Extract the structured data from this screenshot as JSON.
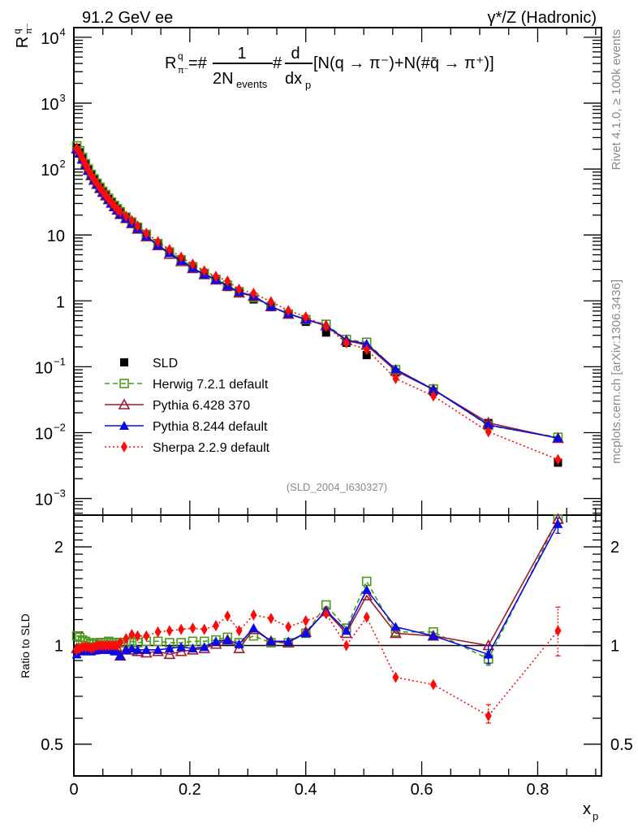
{
  "header": {
    "left_title": "91.2 GeV ee",
    "right_title": "γ*/Z (Hadronic)"
  },
  "side_labels": {
    "rivet": "Rivet 4.1.0, ≥ 100k events",
    "mcplots": "mcplots.cern.ch [arXiv:1306.3436]"
  },
  "formula": {
    "lhs": "R",
    "lhs_sup": "q",
    "lhs_sub": "π⁻",
    "eq": "=#",
    "num": "1",
    "den": "2N",
    "den_sub": "events",
    "hash2": "#",
    "d_num": "d",
    "d_den": "dx",
    "d_den_sub": "p",
    "bracket": "[N(q → π⁻)+N(#q̄ → π⁺)]"
  },
  "analysis_id": "(SLD_2004_I630327)",
  "colors": {
    "SLD": "#000000",
    "Herwig": "#4a9a1c",
    "Pythia6": "#a0182c",
    "Pythia8": "#0a0ae6",
    "Sherpa": "#ff0a0a"
  },
  "chart_data": [
    {
      "type": "scatter",
      "panel": "main",
      "title": "",
      "ylabel": "R^q_π-",
      "xlabel": "",
      "yscale": "log",
      "ylim": [
        0.00056,
        14000
      ],
      "xlim": [
        0,
        0.91
      ],
      "yticks": [
        {
          "value": 10000,
          "label": "10^4"
        },
        {
          "value": 1000,
          "label": "10^3"
        },
        {
          "value": 100,
          "label": "10^2"
        },
        {
          "value": 10,
          "label": "10"
        },
        {
          "value": 1,
          "label": "1"
        },
        {
          "value": 0.1,
          "label": "10^-1"
        },
        {
          "value": 0.01,
          "label": "10^-2"
        },
        {
          "value": 0.001,
          "label": "10^-3"
        }
      ],
      "legend_position": "bottom-left",
      "x": [
        0.005,
        0.01,
        0.015,
        0.02,
        0.025,
        0.03,
        0.035,
        0.04,
        0.045,
        0.05,
        0.055,
        0.06,
        0.065,
        0.07,
        0.075,
        0.08,
        0.09,
        0.1,
        0.11,
        0.125,
        0.145,
        0.165,
        0.185,
        0.205,
        0.225,
        0.245,
        0.265,
        0.285,
        0.31,
        0.34,
        0.37,
        0.4,
        0.435,
        0.47,
        0.505,
        0.555,
        0.62,
        0.715,
        0.835
      ],
      "series": [
        {
          "name": "SLD",
          "marker": "filled-square",
          "line": "none",
          "values": [
            210,
            180,
            145,
            118,
            98,
            82,
            70,
            60,
            52,
            45,
            40,
            35,
            31,
            27.5,
            24.5,
            22,
            18.3,
            15.3,
            12.8,
            9.9,
            7.2,
            5.4,
            4.1,
            3.2,
            2.55,
            2.05,
            1.62,
            1.35,
            1.05,
            0.8,
            0.62,
            0.48,
            0.33,
            0.23,
            0.15,
            0.082,
            0.042,
            0.014,
            0.0035
          ]
        },
        {
          "name": "Herwig 7.2.1 default",
          "marker": "open-square",
          "line": "dashed",
          "values": [
            225,
            190,
            150,
            121,
            100,
            83,
            71,
            61,
            53,
            46,
            41,
            36,
            31.6,
            28,
            25,
            22.5,
            18.7,
            15.7,
            13.1,
            10.2,
            7.4,
            5.5,
            4.2,
            3.3,
            2.62,
            2.12,
            1.72,
            1.38,
            1.12,
            0.82,
            0.63,
            0.52,
            0.44,
            0.26,
            0.235,
            0.09,
            0.046,
            0.0128,
            0.0085
          ]
        },
        {
          "name": "Pythia 6.428 370",
          "marker": "open-triangle",
          "line": "solid",
          "values": [
            205,
            175,
            142,
            116,
            96,
            80,
            68,
            59,
            51,
            44.5,
            39.5,
            34.5,
            30.5,
            27,
            24,
            20.5,
            17.8,
            14.9,
            12.3,
            9.4,
            6.9,
            5.1,
            3.95,
            3.1,
            2.5,
            2.08,
            1.68,
            1.32,
            1.18,
            0.82,
            0.63,
            0.53,
            0.42,
            0.25,
            0.213,
            0.087,
            0.045,
            0.0141,
            0.0082
          ]
        },
        {
          "name": "Pythia 8.244 default",
          "marker": "filled-triangle",
          "line": "solid",
          "values": [
            197,
            172,
            140,
            114,
            94,
            79,
            68,
            58,
            50.5,
            44,
            39,
            34,
            30,
            26.5,
            23.5,
            20.4,
            17.7,
            15,
            12.4,
            9.6,
            7.0,
            5.3,
            4.05,
            3.15,
            2.52,
            2.1,
            1.69,
            1.36,
            1.19,
            0.82,
            0.64,
            0.52,
            0.42,
            0.255,
            0.222,
            0.092,
            0.045,
            0.0131,
            0.0083
          ]
        },
        {
          "name": "Sherpa 2.2.9 default",
          "marker": "filled-diamond",
          "line": "dotted",
          "values": [
            205,
            176,
            144,
            117,
            97,
            81,
            69.5,
            60,
            52,
            45,
            40,
            35,
            31,
            27.5,
            24.5,
            22.5,
            19.3,
            16.5,
            13.7,
            10.6,
            7.9,
            6.0,
            4.6,
            3.6,
            2.85,
            2.35,
            2.0,
            1.5,
            1.3,
            0.97,
            0.71,
            0.57,
            0.41,
            0.23,
            0.183,
            0.066,
            0.036,
            0.0103,
            0.0039
          ]
        }
      ]
    },
    {
      "type": "scatter",
      "panel": "ratio",
      "ylabel": "Ratio to SLD",
      "xlabel": "x_p",
      "yscale": "log",
      "ylim": [
        0.4,
        2.5
      ],
      "xlim": [
        0,
        0.91
      ],
      "yticks": [
        {
          "value": 0.5,
          "label": "0.5"
        },
        {
          "value": 1,
          "label": "1"
        },
        {
          "value": 2,
          "label": "2"
        }
      ],
      "xticks": [
        {
          "value": 0,
          "label": "0"
        },
        {
          "value": 0.2,
          "label": "0.2"
        },
        {
          "value": 0.4,
          "label": "0.4"
        },
        {
          "value": 0.6,
          "label": "0.6"
        },
        {
          "value": 0.8,
          "label": "0.8"
        }
      ],
      "reference_line": 1,
      "x": [
        0.005,
        0.01,
        0.015,
        0.02,
        0.025,
        0.03,
        0.035,
        0.04,
        0.045,
        0.05,
        0.055,
        0.06,
        0.065,
        0.07,
        0.075,
        0.08,
        0.09,
        0.1,
        0.11,
        0.125,
        0.145,
        0.165,
        0.185,
        0.205,
        0.225,
        0.245,
        0.265,
        0.285,
        0.31,
        0.34,
        0.37,
        0.4,
        0.435,
        0.47,
        0.505,
        0.555,
        0.62,
        0.715,
        0.835
      ],
      "series": [
        {
          "name": "Herwig 7.2.1 default",
          "marker": "open-square",
          "line": "dashed",
          "values": [
            1.07,
            1.06,
            1.04,
            1.03,
            1.02,
            1.01,
            1.01,
            1.02,
            1.02,
            1.02,
            1.02,
            1.03,
            1.02,
            1.02,
            1.02,
            1.02,
            1.02,
            1.03,
            1.02,
            1.03,
            1.03,
            1.02,
            1.02,
            1.03,
            1.03,
            1.04,
            1.06,
            1.02,
            1.07,
            1.02,
            1.02,
            1.09,
            1.33,
            1.13,
            1.57,
            1.1,
            1.1,
            0.91,
            2.43
          ]
        },
        {
          "name": "Pythia 6.428 370",
          "marker": "open-triangle",
          "line": "solid",
          "values": [
            0.98,
            0.97,
            0.98,
            0.98,
            0.98,
            0.98,
            0.97,
            0.98,
            0.98,
            0.99,
            0.99,
            0.98,
            0.98,
            0.98,
            0.98,
            0.93,
            0.97,
            0.97,
            0.96,
            0.95,
            0.96,
            0.94,
            0.96,
            0.97,
            0.98,
            1.01,
            1.04,
            0.98,
            1.12,
            1.03,
            1.02,
            1.1,
            1.27,
            1.09,
            1.42,
            1.09,
            1.07,
            1.0,
            2.43
          ]
        },
        {
          "name": "Pythia 8.244 default",
          "marker": "filled-triangle",
          "line": "solid",
          "values": [
            0.94,
            0.96,
            0.97,
            0.97,
            0.96,
            0.96,
            0.97,
            0.97,
            0.97,
            0.98,
            0.98,
            0.97,
            0.97,
            0.96,
            0.96,
            0.93,
            0.97,
            0.98,
            0.97,
            0.97,
            0.97,
            0.98,
            0.99,
            0.98,
            0.99,
            1.03,
            1.04,
            1.01,
            1.13,
            1.03,
            1.03,
            1.09,
            1.28,
            1.11,
            1.48,
            1.14,
            1.07,
            0.94,
            2.35
          ]
        },
        {
          "name": "Sherpa 2.2.9 default",
          "marker": "filled-diamond",
          "line": "dotted",
          "values": [
            0.97,
            0.98,
            0.99,
            0.99,
            0.99,
            0.98,
            0.99,
            1.0,
            1.0,
            1.0,
            1.0,
            1.0,
            1.0,
            1.0,
            1.0,
            1.02,
            1.05,
            1.08,
            1.07,
            1.07,
            1.1,
            1.11,
            1.12,
            1.13,
            1.12,
            1.15,
            1.23,
            1.11,
            1.24,
            1.21,
            1.14,
            1.19,
            1.25,
            1.0,
            1.22,
            0.8,
            0.76,
            0.61,
            1.11
          ]
        }
      ],
      "error_bars": {
        "Sherpa 2.2.9 default": {
          "0.715": [
            0.58,
            0.66
          ],
          "0.835": [
            0.93,
            1.31
          ]
        },
        "Pythia 8.244 default": {
          "0.835": [
            2.2,
            2.45
          ],
          "0.715": [
            0.88,
            1.0
          ]
        },
        "Herwig 7.2.1 default": {
          "0.715": [
            0.87,
            0.96
          ]
        }
      }
    }
  ]
}
